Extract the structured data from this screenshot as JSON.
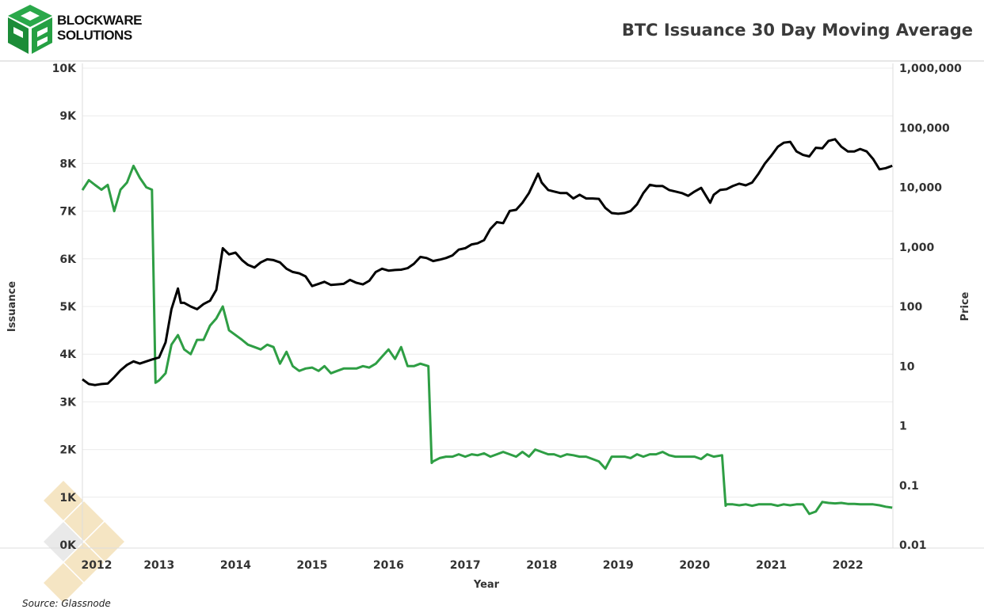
{
  "logo": {
    "line1": "BLOCKWARE",
    "line2": "SOLUTIONS",
    "color": "#1f9a3a"
  },
  "source": "Source: Glassnode",
  "colors": {
    "issuance": "#2e9e44",
    "price": "#000000",
    "grid": "#ececec",
    "watermark": "#f2ddb0"
  },
  "chart_data": {
    "type": "line",
    "title": "BTC Issuance 30 Day Moving Average",
    "xlabel": "Year",
    "ylabel": "Issuance",
    "y2label": "Price",
    "x_ticks": [
      "2012",
      "2013",
      "2014",
      "2015",
      "2016",
      "2017",
      "2018",
      "2019",
      "2020",
      "2021",
      "2022"
    ],
    "y_ticks": [
      "0K",
      "1K",
      "2K",
      "3K",
      "4K",
      "5K",
      "6K",
      "7K",
      "8K",
      "9K",
      "10K"
    ],
    "y2_ticks": [
      "0.01",
      "0.1",
      "1",
      "10",
      "100",
      "1,000",
      "10,000",
      "100,000",
      "1,000,000"
    ],
    "xlim": [
      "2012-01-01",
      "2022-08-15"
    ],
    "ylim": [
      0,
      10000
    ],
    "y2lim": [
      0.01,
      1000000
    ],
    "y2_scale": "log",
    "grid": true,
    "series": [
      {
        "axis": "left",
        "color": "#2e9e44",
        "points": [
          [
            "2012-01-01",
            7440
          ],
          [
            "2012-02-01",
            7650
          ],
          [
            "2012-03-01",
            7550
          ],
          [
            "2012-04-01",
            7450
          ],
          [
            "2012-05-01",
            7550
          ],
          [
            "2012-06-01",
            7000
          ],
          [
            "2012-07-01",
            7450
          ],
          [
            "2012-08-01",
            7600
          ],
          [
            "2012-09-01",
            7950
          ],
          [
            "2012-10-01",
            7700
          ],
          [
            "2012-11-01",
            7500
          ],
          [
            "2012-11-28",
            7450
          ],
          [
            "2012-12-15",
            3400
          ],
          [
            "2013-01-01",
            3450
          ],
          [
            "2013-02-01",
            3600
          ],
          [
            "2013-03-01",
            4200
          ],
          [
            "2013-04-01",
            4400
          ],
          [
            "2013-05-01",
            4100
          ],
          [
            "2013-06-01",
            4000
          ],
          [
            "2013-07-01",
            4300
          ],
          [
            "2013-08-01",
            4300
          ],
          [
            "2013-09-01",
            4600
          ],
          [
            "2013-10-01",
            4750
          ],
          [
            "2013-11-01",
            5000
          ],
          [
            "2013-12-01",
            4500
          ],
          [
            "2014-01-01",
            4400
          ],
          [
            "2014-02-01",
            4300
          ],
          [
            "2014-03-01",
            4200
          ],
          [
            "2014-04-01",
            4150
          ],
          [
            "2014-05-01",
            4100
          ],
          [
            "2014-06-01",
            4200
          ],
          [
            "2014-07-01",
            4150
          ],
          [
            "2014-08-01",
            3800
          ],
          [
            "2014-09-01",
            4050
          ],
          [
            "2014-10-01",
            3750
          ],
          [
            "2014-11-01",
            3650
          ],
          [
            "2014-12-01",
            3700
          ],
          [
            "2015-01-01",
            3720
          ],
          [
            "2015-02-01",
            3650
          ],
          [
            "2015-03-01",
            3750
          ],
          [
            "2015-04-01",
            3600
          ],
          [
            "2015-05-01",
            3650
          ],
          [
            "2015-06-01",
            3700
          ],
          [
            "2015-07-01",
            3700
          ],
          [
            "2015-08-01",
            3700
          ],
          [
            "2015-09-01",
            3750
          ],
          [
            "2015-10-01",
            3720
          ],
          [
            "2015-11-01",
            3800
          ],
          [
            "2015-12-01",
            3950
          ],
          [
            "2016-01-01",
            4100
          ],
          [
            "2016-02-01",
            3900
          ],
          [
            "2016-03-01",
            4150
          ],
          [
            "2016-04-01",
            3750
          ],
          [
            "2016-05-01",
            3750
          ],
          [
            "2016-06-01",
            3800
          ],
          [
            "2016-07-09",
            3750
          ],
          [
            "2016-07-25",
            1720
          ],
          [
            "2016-08-01",
            1750
          ],
          [
            "2016-09-01",
            1820
          ],
          [
            "2016-10-01",
            1850
          ],
          [
            "2016-11-01",
            1850
          ],
          [
            "2016-12-01",
            1900
          ],
          [
            "2017-01-01",
            1850
          ],
          [
            "2017-02-01",
            1900
          ],
          [
            "2017-03-01",
            1880
          ],
          [
            "2017-04-01",
            1920
          ],
          [
            "2017-05-01",
            1850
          ],
          [
            "2017-06-01",
            1900
          ],
          [
            "2017-07-01",
            1950
          ],
          [
            "2017-08-01",
            1900
          ],
          [
            "2017-09-01",
            1850
          ],
          [
            "2017-10-01",
            1950
          ],
          [
            "2017-11-01",
            1850
          ],
          [
            "2017-12-01",
            2000
          ],
          [
            "2018-01-01",
            1950
          ],
          [
            "2018-02-01",
            1900
          ],
          [
            "2018-03-01",
            1900
          ],
          [
            "2018-04-01",
            1850
          ],
          [
            "2018-05-01",
            1900
          ],
          [
            "2018-06-01",
            1880
          ],
          [
            "2018-07-01",
            1850
          ],
          [
            "2018-08-01",
            1850
          ],
          [
            "2018-09-01",
            1800
          ],
          [
            "2018-10-01",
            1750
          ],
          [
            "2018-11-01",
            1600
          ],
          [
            "2018-12-01",
            1850
          ],
          [
            "2019-01-01",
            1850
          ],
          [
            "2019-02-01",
            1850
          ],
          [
            "2019-03-01",
            1820
          ],
          [
            "2019-04-01",
            1900
          ],
          [
            "2019-05-01",
            1850
          ],
          [
            "2019-06-01",
            1900
          ],
          [
            "2019-07-01",
            1900
          ],
          [
            "2019-08-01",
            1950
          ],
          [
            "2019-09-01",
            1880
          ],
          [
            "2019-10-01",
            1850
          ],
          [
            "2019-11-01",
            1850
          ],
          [
            "2019-12-01",
            1850
          ],
          [
            "2020-01-01",
            1850
          ],
          [
            "2020-02-01",
            1800
          ],
          [
            "2020-03-01",
            1900
          ],
          [
            "2020-04-01",
            1850
          ],
          [
            "2020-05-11",
            1880
          ],
          [
            "2020-05-28",
            820
          ],
          [
            "2020-06-01",
            850
          ],
          [
            "2020-07-01",
            850
          ],
          [
            "2020-08-01",
            830
          ],
          [
            "2020-09-01",
            850
          ],
          [
            "2020-10-01",
            820
          ],
          [
            "2020-11-01",
            850
          ],
          [
            "2020-12-01",
            850
          ],
          [
            "2021-01-01",
            850
          ],
          [
            "2021-02-01",
            820
          ],
          [
            "2021-03-01",
            850
          ],
          [
            "2021-04-01",
            830
          ],
          [
            "2021-05-01",
            850
          ],
          [
            "2021-06-01",
            850
          ],
          [
            "2021-07-01",
            650
          ],
          [
            "2021-08-01",
            700
          ],
          [
            "2021-09-01",
            900
          ],
          [
            "2021-10-01",
            880
          ],
          [
            "2021-11-01",
            870
          ],
          [
            "2021-12-01",
            880
          ],
          [
            "2022-01-01",
            860
          ],
          [
            "2022-02-01",
            860
          ],
          [
            "2022-03-01",
            850
          ],
          [
            "2022-04-01",
            850
          ],
          [
            "2022-05-01",
            850
          ],
          [
            "2022-06-01",
            830
          ],
          [
            "2022-07-01",
            800
          ],
          [
            "2022-08-01",
            780
          ]
        ]
      },
      {
        "axis": "right",
        "color": "#000000",
        "points": [
          [
            "2012-01-01",
            6
          ],
          [
            "2012-02-01",
            5
          ],
          [
            "2012-03-01",
            4.8
          ],
          [
            "2012-04-01",
            5
          ],
          [
            "2012-05-01",
            5.1
          ],
          [
            "2012-06-01",
            6.5
          ],
          [
            "2012-07-01",
            8.5
          ],
          [
            "2012-08-01",
            10.5
          ],
          [
            "2012-09-01",
            12
          ],
          [
            "2012-10-01",
            11
          ],
          [
            "2012-11-01",
            12
          ],
          [
            "2012-12-01",
            13
          ],
          [
            "2013-01-01",
            14
          ],
          [
            "2013-02-01",
            25
          ],
          [
            "2013-03-01",
            90
          ],
          [
            "2013-04-01",
            200
          ],
          [
            "2013-04-15",
            115
          ],
          [
            "2013-05-01",
            115
          ],
          [
            "2013-06-01",
            100
          ],
          [
            "2013-07-01",
            90
          ],
          [
            "2013-08-01",
            110
          ],
          [
            "2013-09-01",
            125
          ],
          [
            "2013-10-01",
            190
          ],
          [
            "2013-11-01",
            950
          ],
          [
            "2013-12-01",
            750
          ],
          [
            "2014-01-01",
            800
          ],
          [
            "2014-02-01",
            600
          ],
          [
            "2014-03-01",
            500
          ],
          [
            "2014-04-01",
            450
          ],
          [
            "2014-05-01",
            550
          ],
          [
            "2014-06-01",
            620
          ],
          [
            "2014-07-01",
            600
          ],
          [
            "2014-08-01",
            550
          ],
          [
            "2014-09-01",
            430
          ],
          [
            "2014-10-01",
            380
          ],
          [
            "2014-11-01",
            360
          ],
          [
            "2014-12-01",
            320
          ],
          [
            "2015-01-01",
            220
          ],
          [
            "2015-02-01",
            240
          ],
          [
            "2015-03-01",
            260
          ],
          [
            "2015-04-01",
            230
          ],
          [
            "2015-05-01",
            235
          ],
          [
            "2015-06-01",
            240
          ],
          [
            "2015-07-01",
            280
          ],
          [
            "2015-08-01",
            250
          ],
          [
            "2015-09-01",
            235
          ],
          [
            "2015-10-01",
            270
          ],
          [
            "2015-11-01",
            380
          ],
          [
            "2015-12-01",
            430
          ],
          [
            "2016-01-01",
            400
          ],
          [
            "2016-02-01",
            410
          ],
          [
            "2016-03-01",
            415
          ],
          [
            "2016-04-01",
            440
          ],
          [
            "2016-05-01",
            520
          ],
          [
            "2016-06-01",
            680
          ],
          [
            "2016-07-01",
            650
          ],
          [
            "2016-08-01",
            580
          ],
          [
            "2016-09-01",
            610
          ],
          [
            "2016-10-01",
            650
          ],
          [
            "2016-11-01",
            720
          ],
          [
            "2016-12-01",
            900
          ],
          [
            "2017-01-01",
            950
          ],
          [
            "2017-02-01",
            1100
          ],
          [
            "2017-03-01",
            1150
          ],
          [
            "2017-04-01",
            1300
          ],
          [
            "2017-05-01",
            2000
          ],
          [
            "2017-06-01",
            2600
          ],
          [
            "2017-07-01",
            2500
          ],
          [
            "2017-08-01",
            4000
          ],
          [
            "2017-09-01",
            4200
          ],
          [
            "2017-10-01",
            5500
          ],
          [
            "2017-11-01",
            8000
          ],
          [
            "2017-12-15",
            17000
          ],
          [
            "2018-01-01",
            12000
          ],
          [
            "2018-02-01",
            9000
          ],
          [
            "2018-03-01",
            8500
          ],
          [
            "2018-04-01",
            8000
          ],
          [
            "2018-05-01",
            8000
          ],
          [
            "2018-06-01",
            6500
          ],
          [
            "2018-07-01",
            7500
          ],
          [
            "2018-08-01",
            6500
          ],
          [
            "2018-09-01",
            6500
          ],
          [
            "2018-10-01",
            6400
          ],
          [
            "2018-11-01",
            4500
          ],
          [
            "2018-12-01",
            3700
          ],
          [
            "2019-01-01",
            3600
          ],
          [
            "2019-02-01",
            3700
          ],
          [
            "2019-03-01",
            4000
          ],
          [
            "2019-04-01",
            5200
          ],
          [
            "2019-05-01",
            8000
          ],
          [
            "2019-06-01",
            11000
          ],
          [
            "2019-07-01",
            10500
          ],
          [
            "2019-08-01",
            10500
          ],
          [
            "2019-09-01",
            9000
          ],
          [
            "2019-10-01",
            8500
          ],
          [
            "2019-11-01",
            8000
          ],
          [
            "2019-12-01",
            7200
          ],
          [
            "2020-01-01",
            8500
          ],
          [
            "2020-02-01",
            9800
          ],
          [
            "2020-03-15",
            5500
          ],
          [
            "2020-04-01",
            7500
          ],
          [
            "2020-05-01",
            9000
          ],
          [
            "2020-06-01",
            9300
          ],
          [
            "2020-07-01",
            10500
          ],
          [
            "2020-08-01",
            11500
          ],
          [
            "2020-09-01",
            10800
          ],
          [
            "2020-10-01",
            12000
          ],
          [
            "2020-11-01",
            17000
          ],
          [
            "2020-12-01",
            25000
          ],
          [
            "2021-01-01",
            34000
          ],
          [
            "2021-02-01",
            48000
          ],
          [
            "2021-03-01",
            56000
          ],
          [
            "2021-04-01",
            58000
          ],
          [
            "2021-05-01",
            40000
          ],
          [
            "2021-06-01",
            35000
          ],
          [
            "2021-07-01",
            33000
          ],
          [
            "2021-08-01",
            46000
          ],
          [
            "2021-09-01",
            45000
          ],
          [
            "2021-10-01",
            60000
          ],
          [
            "2021-11-01",
            64000
          ],
          [
            "2021-12-01",
            48000
          ],
          [
            "2022-01-01",
            40000
          ],
          [
            "2022-02-01",
            40000
          ],
          [
            "2022-03-01",
            44000
          ],
          [
            "2022-04-01",
            40000
          ],
          [
            "2022-05-01",
            30000
          ],
          [
            "2022-06-01",
            20000
          ],
          [
            "2022-07-01",
            21000
          ],
          [
            "2022-08-01",
            23000
          ]
        ]
      }
    ]
  }
}
